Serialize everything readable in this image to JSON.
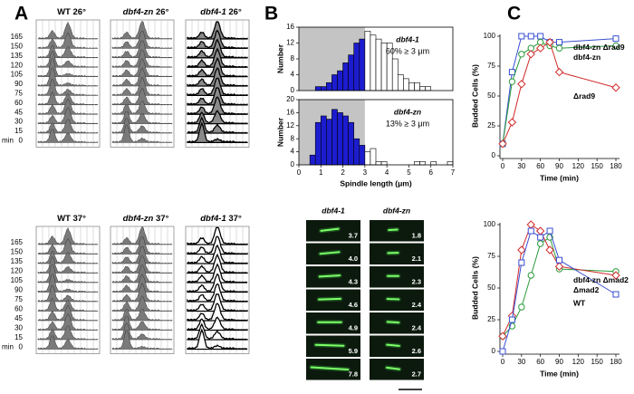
{
  "panel_labels": [
    "A",
    "B",
    "C"
  ],
  "flow_cytometry": {
    "time_unit": "min",
    "times": [
      165,
      150,
      135,
      120,
      105,
      90,
      75,
      60,
      45,
      30,
      15,
      0
    ],
    "panels": [
      {
        "strain": "WT",
        "temp": "26°"
      },
      {
        "strain": "dbf4-zn",
        "temp": "26°"
      },
      {
        "strain": "dbf4-1",
        "temp": "26°"
      },
      {
        "strain": "WT",
        "temp": "37°"
      },
      {
        "strain": "dbf4-zn",
        "temp": "37°"
      },
      {
        "strain": "dbf4-1",
        "temp": "37°"
      }
    ]
  },
  "microscopy": {
    "columns": [
      {
        "strain": "dbf4-1",
        "lengths": [
          "3.7",
          "4.0",
          "4.3",
          "4.6",
          "4.9",
          "5.9",
          "7.8"
        ]
      },
      {
        "strain": "dbf4-zn",
        "lengths": [
          "1.8",
          "2.1",
          "2.3",
          "2.4",
          "2.4",
          "2.6",
          "2.7"
        ]
      }
    ]
  },
  "chart_data": [
    {
      "type": "histogram",
      "ylabel": "Number",
      "bins": [
        0.75,
        1,
        1.25,
        1.5,
        1.75,
        2,
        2.25,
        2.5,
        2.75,
        3,
        3.25,
        3.5,
        3.75,
        4,
        4.25,
        4.5,
        4.75,
        5,
        5.25,
        5.5,
        5.75,
        6
      ],
      "counts": [
        1,
        1,
        2,
        4,
        5,
        7,
        9,
        12,
        13,
        15,
        14,
        13,
        12,
        12,
        8,
        4,
        3,
        2,
        2,
        1,
        1
      ],
      "xlim": [
        0,
        7
      ],
      "ylim": [
        0,
        16
      ],
      "yticks": [
        0,
        4,
        8,
        12,
        16
      ],
      "annotations": [
        "dbf4-1",
        "60% ≥ 3 μm"
      ],
      "threshold": 3,
      "shade_color": "#c4c4c4",
      "color_below": "#1c1ccf",
      "color_above": "#ffffff"
    },
    {
      "type": "histogram",
      "ylabel": "Number",
      "xlabel": "Spindle length (μm)",
      "bins": [
        0.5,
        0.75,
        1,
        1.25,
        1.5,
        1.75,
        2,
        2.25,
        2.5,
        2.75,
        3,
        3.25,
        3.5,
        3.75,
        4,
        4.25,
        4.5,
        4.75,
        5,
        5.25,
        5.5,
        5.75,
        6,
        6.25,
        6.5,
        6.75,
        7
      ],
      "counts": [
        3,
        13,
        15,
        14,
        17,
        16,
        15,
        13,
        8,
        6,
        4,
        5,
        1,
        1,
        0,
        0,
        0,
        0,
        0,
        1,
        1,
        0,
        1,
        0,
        0,
        1
      ],
      "xlim": [
        0,
        7
      ],
      "xticks": [
        0,
        1,
        2,
        3,
        4,
        5,
        6,
        7
      ],
      "ylim": [
        0,
        20
      ],
      "yticks": [
        0,
        4,
        8,
        12,
        16,
        20
      ],
      "annotations": [
        "dbf4-zn",
        "13% ≥ 3 μm"
      ],
      "threshold": 3,
      "shade_color": "#c4c4c4",
      "color_below": "#1c1ccf",
      "color_above": "#ffffff"
    },
    {
      "type": "line",
      "xlabel": "Time (min)",
      "ylabel": "Budded Cells (%)",
      "x": [
        0,
        15,
        30,
        45,
        60,
        75,
        90,
        180
      ],
      "xlim": [
        0,
        180
      ],
      "xticks": [
        0,
        30,
        60,
        90,
        120,
        150,
        180
      ],
      "ylim": [
        0,
        100
      ],
      "yticks": [
        0,
        25,
        50,
        75,
        100
      ],
      "series": [
        {
          "name": "dbf4-zn Δrad9",
          "color": "#3a4fd0",
          "marker": "square",
          "values": [
            10,
            70,
            100,
            100,
            100,
            95,
            95,
            98
          ]
        },
        {
          "name": "dbf4-zn",
          "color": "#2a9a3a",
          "marker": "circle",
          "values": [
            10,
            62,
            85,
            90,
            95,
            92,
            90,
            92
          ]
        },
        {
          "name": "Δrad9",
          "color": "#d02a2a",
          "marker": "diamond",
          "values": [
            10,
            28,
            60,
            85,
            90,
            95,
            70,
            57
          ]
        }
      ]
    },
    {
      "type": "line",
      "xlabel": "Time (min)",
      "ylabel": "Budded Cells (%)",
      "x": [
        0,
        15,
        30,
        45,
        60,
        75,
        90,
        180
      ],
      "xlim": [
        0,
        180
      ],
      "xticks": [
        0,
        30,
        60,
        90,
        120,
        150,
        180
      ],
      "ylim": [
        0,
        100
      ],
      "yticks": [
        0,
        25,
        50,
        75,
        100
      ],
      "series": [
        {
          "name": "dbf4-zn Δmad2",
          "color": "#2a9a3a",
          "marker": "circle",
          "values": [
            12,
            20,
            35,
            60,
            85,
            90,
            65,
            63
          ]
        },
        {
          "name": "Δmad2",
          "color": "#d02a2a",
          "marker": "diamond",
          "values": [
            12,
            28,
            80,
            100,
            95,
            80,
            67,
            60
          ]
        },
        {
          "name": "WT",
          "color": "#3a4fd0",
          "marker": "square",
          "values": [
            0,
            25,
            70,
            95,
            90,
            95,
            72,
            45
          ]
        }
      ]
    }
  ]
}
